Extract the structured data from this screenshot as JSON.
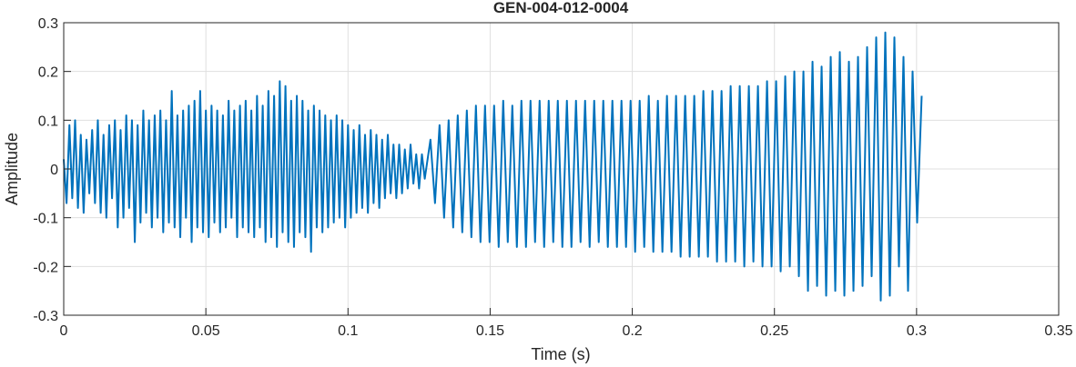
{
  "chart_data": {
    "type": "line",
    "title": "GEN-004-012-0004",
    "xlabel": "Time (s)",
    "ylabel": "Amplitude",
    "xlim": [
      0,
      0.35
    ],
    "ylim": [
      -0.3,
      0.3
    ],
    "xticks": [
      0,
      0.05,
      0.1,
      0.15,
      0.2,
      0.25,
      0.3,
      0.35
    ],
    "yticks": [
      -0.3,
      -0.2,
      -0.1,
      0,
      0.1,
      0.2,
      0.3
    ],
    "grid": true,
    "color": "#0072bd",
    "x": [
      0,
      0.001,
      0.002,
      0.003,
      0.004,
      0.005,
      0.006,
      0.007,
      0.008,
      0.009,
      0.01,
      0.011,
      0.012,
      0.013,
      0.014,
      0.015,
      0.016,
      0.017,
      0.018,
      0.019,
      0.02,
      0.021,
      0.022,
      0.023,
      0.024,
      0.025,
      0.026,
      0.027,
      0.028,
      0.029,
      0.03,
      0.031,
      0.032,
      0.033,
      0.034,
      0.035,
      0.036,
      0.037,
      0.038,
      0.039,
      0.04,
      0.041,
      0.042,
      0.043,
      0.044,
      0.045,
      0.046,
      0.047,
      0.048,
      0.049,
      0.05,
      0.051,
      0.052,
      0.053,
      0.054,
      0.055,
      0.056,
      0.057,
      0.058,
      0.059,
      0.06,
      0.061,
      0.062,
      0.063,
      0.064,
      0.065,
      0.066,
      0.067,
      0.068,
      0.069,
      0.07,
      0.071,
      0.072,
      0.073,
      0.074,
      0.075,
      0.076,
      0.077,
      0.078,
      0.079,
      0.08,
      0.081,
      0.082,
      0.083,
      0.084,
      0.085,
      0.086,
      0.087,
      0.088,
      0.089,
      0.09,
      0.091,
      0.092,
      0.093,
      0.094,
      0.095,
      0.096,
      0.097,
      0.098,
      0.099,
      0.1,
      0.101,
      0.102,
      0.103,
      0.104,
      0.105,
      0.106,
      0.107,
      0.108,
      0.109,
      0.11,
      0.111,
      0.112,
      0.113,
      0.114,
      0.115,
      0.116,
      0.117,
      0.118,
      0.119,
      0.12,
      0.121,
      0.122,
      0.123,
      0.124,
      0.125,
      0.126,
      0.127,
      0.128,
      0.129,
      0.1306,
      0.1322,
      0.1338,
      0.1354,
      0.137,
      0.1386,
      0.1402,
      0.1418,
      0.1434,
      0.145,
      0.1466,
      0.1482,
      0.1498,
      0.1514,
      0.153,
      0.1546,
      0.1562,
      0.1578,
      0.1594,
      0.161,
      0.1626,
      0.1642,
      0.1658,
      0.1674,
      0.169,
      0.1706,
      0.1722,
      0.1738,
      0.1754,
      0.177,
      0.1786,
      0.1802,
      0.1818,
      0.1834,
      0.185,
      0.1866,
      0.1882,
      0.1898,
      0.1914,
      0.193,
      0.1946,
      0.1962,
      0.1978,
      0.1994,
      0.201,
      0.2026,
      0.2042,
      0.2058,
      0.2074,
      0.209,
      0.2106,
      0.2122,
      0.2138,
      0.2154,
      0.217,
      0.2186,
      0.2202,
      0.2218,
      0.2234,
      0.225,
      0.2266,
      0.2282,
      0.2298,
      0.2314,
      0.233,
      0.2346,
      0.2362,
      0.2378,
      0.2394,
      0.241,
      0.2426,
      0.2442,
      0.2458,
      0.2474,
      0.249,
      0.2506,
      0.2522,
      0.2538,
      0.2554,
      0.257,
      0.2586,
      0.2602,
      0.2618,
      0.2634,
      0.265,
      0.2666,
      0.2682,
      0.2698,
      0.2714,
      0.273,
      0.2746,
      0.2762,
      0.2778,
      0.2794,
      0.281,
      0.2826,
      0.2842,
      0.2858,
      0.2874,
      0.289,
      0.2906,
      0.2922,
      0.2938,
      0.2954,
      0.297,
      0.2986,
      0.3002,
      0.3018
    ],
    "values": [
      0.02,
      -0.07,
      0.09,
      -0.06,
      0.1,
      -0.08,
      0.07,
      -0.09,
      0.06,
      -0.05,
      0.08,
      -0.07,
      0.1,
      -0.09,
      0.07,
      -0.1,
      0.09,
      -0.06,
      0.1,
      -0.12,
      0.08,
      -0.1,
      0.11,
      -0.08,
      0.1,
      -0.15,
      0.09,
      -0.11,
      0.12,
      -0.09,
      0.1,
      -0.12,
      0.11,
      -0.1,
      0.12,
      -0.13,
      0.1,
      -0.11,
      0.16,
      -0.12,
      0.11,
      -0.14,
      0.12,
      -0.1,
      0.13,
      -0.15,
      0.14,
      -0.12,
      0.16,
      -0.13,
      0.12,
      -0.14,
      0.13,
      -0.11,
      0.12,
      -0.13,
      0.11,
      -0.12,
      0.14,
      -0.1,
      0.12,
      -0.14,
      0.13,
      -0.12,
      0.14,
      -0.13,
      0.12,
      -0.14,
      0.15,
      -0.12,
      0.13,
      -0.15,
      0.16,
      -0.14,
      0.15,
      -0.16,
      0.18,
      -0.13,
      0.17,
      -0.15,
      0.14,
      -0.16,
      0.15,
      -0.13,
      0.14,
      -0.14,
      0.12,
      -0.17,
      0.13,
      -0.12,
      0.12,
      -0.13,
      0.11,
      -0.12,
      0.1,
      -0.11,
      0.11,
      -0.1,
      0.1,
      -0.12,
      0.09,
      -0.1,
      0.08,
      -0.09,
      0.09,
      -0.08,
      0.07,
      -0.09,
      0.08,
      -0.07,
      0.07,
      -0.08,
      0.06,
      -0.06,
      0.07,
      -0.05,
      0.05,
      -0.06,
      0.05,
      -0.05,
      0.04,
      -0.04,
      0.05,
      -0.03,
      0.03,
      -0.04,
      0.03,
      -0.02,
      0.02,
      0.06,
      -0.07,
      0.09,
      -0.1,
      0.1,
      -0.12,
      0.11,
      -0.13,
      0.12,
      -0.14,
      0.13,
      -0.15,
      0.13,
      -0.15,
      0.13,
      -0.16,
      0.14,
      -0.15,
      0.13,
      -0.16,
      0.14,
      -0.16,
      0.14,
      -0.15,
      0.14,
      -0.16,
      0.14,
      -0.15,
      0.14,
      -0.16,
      0.14,
      -0.16,
      0.14,
      -0.15,
      0.14,
      -0.16,
      0.14,
      -0.15,
      0.14,
      -0.16,
      0.14,
      -0.16,
      0.14,
      -0.16,
      0.14,
      -0.17,
      0.14,
      -0.16,
      0.15,
      -0.17,
      0.14,
      -0.17,
      0.15,
      -0.17,
      0.15,
      -0.18,
      0.15,
      -0.18,
      0.15,
      -0.18,
      0.16,
      -0.18,
      0.16,
      -0.19,
      0.16,
      -0.19,
      0.17,
      -0.19,
      0.17,
      -0.2,
      0.17,
      -0.19,
      0.17,
      -0.2,
      0.18,
      -0.2,
      0.18,
      -0.21,
      0.19,
      -0.2,
      0.2,
      -0.22,
      0.2,
      -0.25,
      0.22,
      -0.24,
      0.21,
      -0.26,
      0.23,
      -0.25,
      0.24,
      -0.26,
      0.22,
      -0.25,
      0.23,
      -0.24,
      0.25,
      -0.22,
      0.27,
      -0.27,
      0.28,
      -0.26,
      0.27,
      -0.2,
      0.23,
      -0.25,
      0.2,
      -0.11,
      0.15
    ]
  }
}
